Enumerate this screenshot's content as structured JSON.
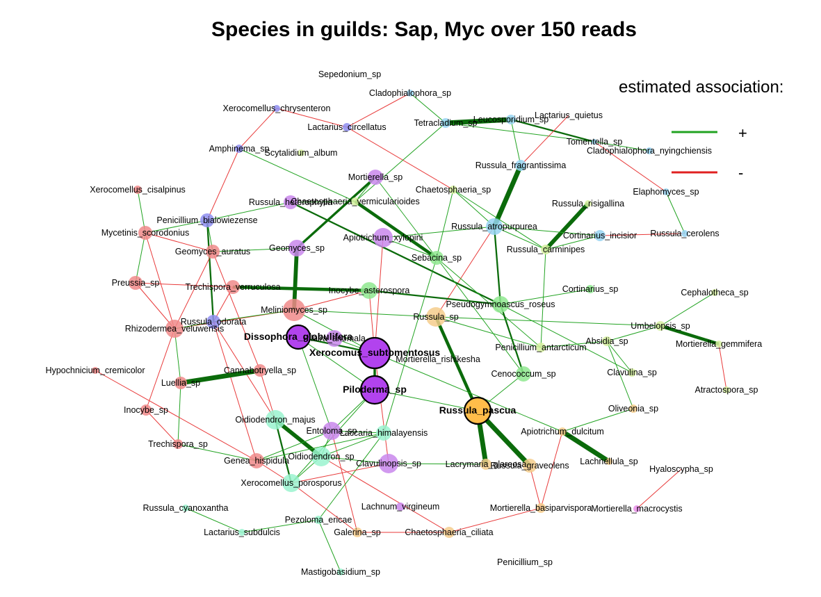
{
  "title": "Species in guilds: Sap, Myc over 150 reads",
  "legend": {
    "title": "estimated association:",
    "items": [
      {
        "symbol": "+",
        "color": "#22a322"
      },
      {
        "symbol": "-",
        "color": "#e02020"
      }
    ]
  },
  "colors": {
    "positive": "#22a322",
    "positive_strong": "#0b6b0b",
    "negative": "#e83a3a",
    "red_nodes": "#f08a8a",
    "blue_nodes": "#8e8ef0",
    "violet_nodes": "#c987ec",
    "purple_hub": "#b243ee",
    "lime_nodes": "#d6f0a0",
    "green_nodes": "#8fe88f",
    "teal_nodes": "#9af3cf",
    "sky_nodes": "#96d3f2",
    "orange_nodes": "#f5cc8c",
    "orange_hub": "#ffbd4a",
    "pink_nodes": "#e78de8"
  },
  "nodes": [
    {
      "id": "Sepedonium_sp",
      "label": "Sepedonium_sp"
    },
    {
      "id": "Cladophialophora_sp",
      "label": "Cladophialophora_sp"
    },
    {
      "id": "Xerocomellus_chrysenteron",
      "label": "Xerocomellus_chrysenteron"
    },
    {
      "id": "Lactarius_circellatus",
      "label": "Lactarius_circellatus"
    },
    {
      "id": "Tetracladium_sp",
      "label": "Tetracladium_sp"
    },
    {
      "id": "Leucosporidium_sp",
      "label": "Leucosporidium_sp"
    },
    {
      "id": "Lactarius_quietus",
      "label": "Lactarius_quietus"
    },
    {
      "id": "Tomentella_sp",
      "label": "Tomentella_sp"
    },
    {
      "id": "Cladophialophora_nyingchiensis",
      "label": "Cladophialophora_nyingchiensis"
    },
    {
      "id": "Amphinema_sp",
      "label": "Amphinema_sp"
    },
    {
      "id": "Scytalidium_album",
      "label": "Scytalidium_album"
    },
    {
      "id": "Russula_fragrantissima",
      "label": "Russula_fragrantissima"
    },
    {
      "id": "Mortierella_sp",
      "label": "Mortierella_sp"
    },
    {
      "id": "Xerocomellus_cisalpinus",
      "label": "Xerocomellus_cisalpinus"
    },
    {
      "id": "Chaetosphaeria_sp",
      "label": "Chaetosphaeria_sp"
    },
    {
      "id": "Elaphomyces_sp",
      "label": "Elaphomyces_sp"
    },
    {
      "id": "Russula_heterophylla",
      "label": "Russula_heterophylla"
    },
    {
      "id": "Chaetosphaeria_vermicularioides",
      "label": "Chaetosphaeria_vermicularioides"
    },
    {
      "id": "Russula_risigallina",
      "label": "Russula_risigallina"
    },
    {
      "id": "Penicillium_bialowiezense",
      "label": "Penicillium_bialowiezense"
    },
    {
      "id": "Mycetinis_scorodonius",
      "label": "Mycetinis_scorodonius"
    },
    {
      "id": "Russula_atropurpurea",
      "label": "Russula_atropurpurea"
    },
    {
      "id": "Apiotrichum_xylopini",
      "label": "Apiotrichum_xylopini"
    },
    {
      "id": "Cortinarius_incisior",
      "label": "Cortinarius_incisior"
    },
    {
      "id": "Russula_cerolens",
      "label": "Russula_cerolens"
    },
    {
      "id": "Geomyces_sp",
      "label": "Geomyces_sp"
    },
    {
      "id": "Geomyces_auratus",
      "label": "Geomyces_auratus"
    },
    {
      "id": "Russula_carminipes",
      "label": "Russula_carminipes"
    },
    {
      "id": "Sebacina_sp",
      "label": "Sebacina_sp"
    },
    {
      "id": "Preussia_sp",
      "label": "Preussia_sp"
    },
    {
      "id": "Trechispora_verruculosa",
      "label": "Trechispora_verruculosa"
    },
    {
      "id": "Inocybe_asterospora",
      "label": "Inocybe_asterospora"
    },
    {
      "id": "Cortinarius_sp",
      "label": "Cortinarius_sp"
    },
    {
      "id": "Cephalotheca_sp",
      "label": "Cephalotheca_sp"
    },
    {
      "id": "Meliniomyces_sp",
      "label": "Meliniomyces_sp"
    },
    {
      "id": "Pseudogymnoascus_roseus",
      "label": "Pseudogymnoascus_roseus"
    },
    {
      "id": "Russula_sp",
      "label": "Russula_sp"
    },
    {
      "id": "Russula_odorata",
      "label": "Russula_odorata"
    },
    {
      "id": "Rhizodermea_veluwensis",
      "label": "Rhizodermea_veluwensis"
    },
    {
      "id": "Umbelopsis_sp",
      "label": "Umbelopsis_sp"
    },
    {
      "id": "Dissophora_globulifera",
      "label": "Dissophora_globulifera"
    },
    {
      "id": "Pilaira_anomala",
      "label": "Pilaira_anomala"
    },
    {
      "id": "Absidia_sp",
      "label": "Absidia_sp"
    },
    {
      "id": "Mortierella_gemmifera",
      "label": "Mortierella_gemmifera"
    },
    {
      "id": "Penicillium_antarcticum",
      "label": "Penicillium_antarcticum"
    },
    {
      "id": "Xerocomus_subtomentosus",
      "label": "Xerocomus_subtomentosus"
    },
    {
      "id": "Mortierella_rishikesha",
      "label": "Mortierella_rishikesha"
    },
    {
      "id": "Hypochnicium_cremicolor",
      "label": "Hypochnicium_cremicolor"
    },
    {
      "id": "Cannabotryella_sp",
      "label": "Cannabotryella_sp"
    },
    {
      "id": "Clavulina_sp",
      "label": "Clavulina_sp"
    },
    {
      "id": "Cenococcum_sp",
      "label": "Cenococcum_sp"
    },
    {
      "id": "Luellia_sp",
      "label": "Luellia_sp"
    },
    {
      "id": "Piloderma_sp",
      "label": "Piloderma_sp"
    },
    {
      "id": "Atractospora_sp",
      "label": "Atractospora_sp"
    },
    {
      "id": "Inocybe_sp",
      "label": "Inocybe_sp"
    },
    {
      "id": "Russula_pascua",
      "label": "Russula_pascua"
    },
    {
      "id": "Oliveonia_sp",
      "label": "Oliveonia_sp"
    },
    {
      "id": "Oidiodendron_majus",
      "label": "Oidiodendron_majus"
    },
    {
      "id": "Entoloma_sp",
      "label": "Entoloma_sp"
    },
    {
      "id": "Laccaria_himalayensis",
      "label": "Laccaria_himalayensis"
    },
    {
      "id": "Apiotrichum_dulcitum",
      "label": "Apiotrichum_dulcitum"
    },
    {
      "id": "Trechispora_sp",
      "label": "Trechispora_sp"
    },
    {
      "id": "Oidiodendron_sp",
      "label": "Oidiodendron_sp"
    },
    {
      "id": "Genea_hispidula",
      "label": "Genea_hispidula"
    },
    {
      "id": "Clavulinopsis_sp",
      "label": "Clavulinopsis_sp"
    },
    {
      "id": "Lacrymaria_glareosa",
      "label": "Lacrymaria_glareosa"
    },
    {
      "id": "Russula_graveolens",
      "label": "Russula_graveolens"
    },
    {
      "id": "Lachnellula_sp",
      "label": "Lachnellula_sp"
    },
    {
      "id": "Hyaloscypha_sp",
      "label": "Hyaloscypha_sp"
    },
    {
      "id": "Xerocomellus_porosporus",
      "label": "Xerocomellus_porosporus"
    },
    {
      "id": "Russula_cyanoxantha",
      "label": "Russula_cyanoxantha"
    },
    {
      "id": "Lachnum_virgineum",
      "label": "Lachnum_virgineum"
    },
    {
      "id": "Mortierella_basiparvispora",
      "label": "Mortierella_basiparvispora"
    },
    {
      "id": "Mortierella_macrocystis",
      "label": "Mortierella_macrocystis"
    },
    {
      "id": "Pezoloma_ericae",
      "label": "Pezoloma_ericae"
    },
    {
      "id": "Lactarius_subdulcis",
      "label": "Lactarius_subdulcis"
    },
    {
      "id": "Galerina_sp",
      "label": "Galerina_sp"
    },
    {
      "id": "Chaetosphaeria_ciliata",
      "label": "Chaetosphaeria_ciliata"
    },
    {
      "id": "Mastigobasidium_sp",
      "label": "Mastigobasidium_sp"
    },
    {
      "id": "Penicillium_sp",
      "label": "Penicillium_sp"
    }
  ]
}
